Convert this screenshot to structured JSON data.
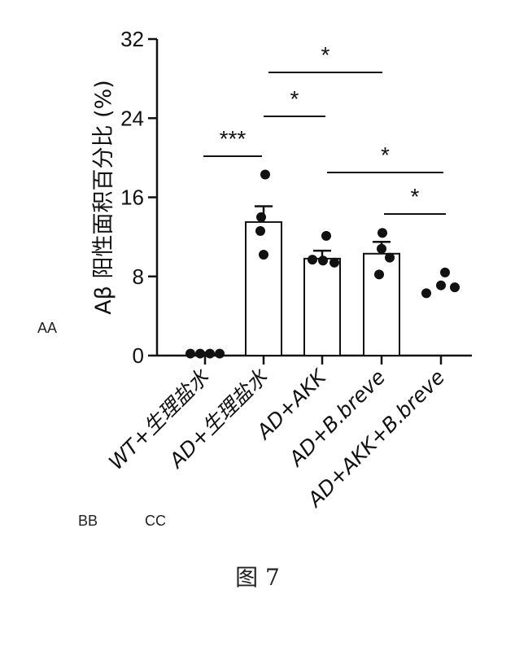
{
  "figure_caption": "图 7",
  "markers": {
    "aa": "AA",
    "bb": "BB",
    "cc": "CC"
  },
  "chart_data": {
    "type": "bar",
    "title": "",
    "ylabel": "Aβ 阳性面积百分比 (%)",
    "xlabel": "",
    "ylim": [
      0,
      32
    ],
    "yticks": [
      0,
      8,
      16,
      24,
      32
    ],
    "categories": [
      "WT+生理盐水",
      "AD+生理盐水",
      "AD+AKK",
      "AD+B.breve",
      "AD+AKK+B.breve"
    ],
    "values": [
      0.2,
      13.5,
      9.8,
      10.3,
      null
    ],
    "errors": [
      0.1,
      1.6,
      0.8,
      1.2,
      null
    ],
    "points": [
      [
        0.2,
        0.2,
        0.2,
        0.2
      ],
      [
        18.3,
        14.0,
        10.2,
        12.6
      ],
      [
        12.1,
        9.7,
        9.4,
        9.6
      ],
      [
        12.4,
        8.2,
        10.8,
        9.9
      ],
      [
        6.3,
        6.9,
        8.4,
        7.1
      ]
    ],
    "comparisons": [
      {
        "from": 0,
        "to": 1,
        "label": "***"
      },
      {
        "from": 1,
        "to": 2,
        "label": "*"
      },
      {
        "from": 1,
        "to": 3,
        "label": "*"
      },
      {
        "from": 2,
        "to": 4,
        "label": "*"
      },
      {
        "from": 3,
        "to": 4,
        "label": "*"
      }
    ]
  }
}
